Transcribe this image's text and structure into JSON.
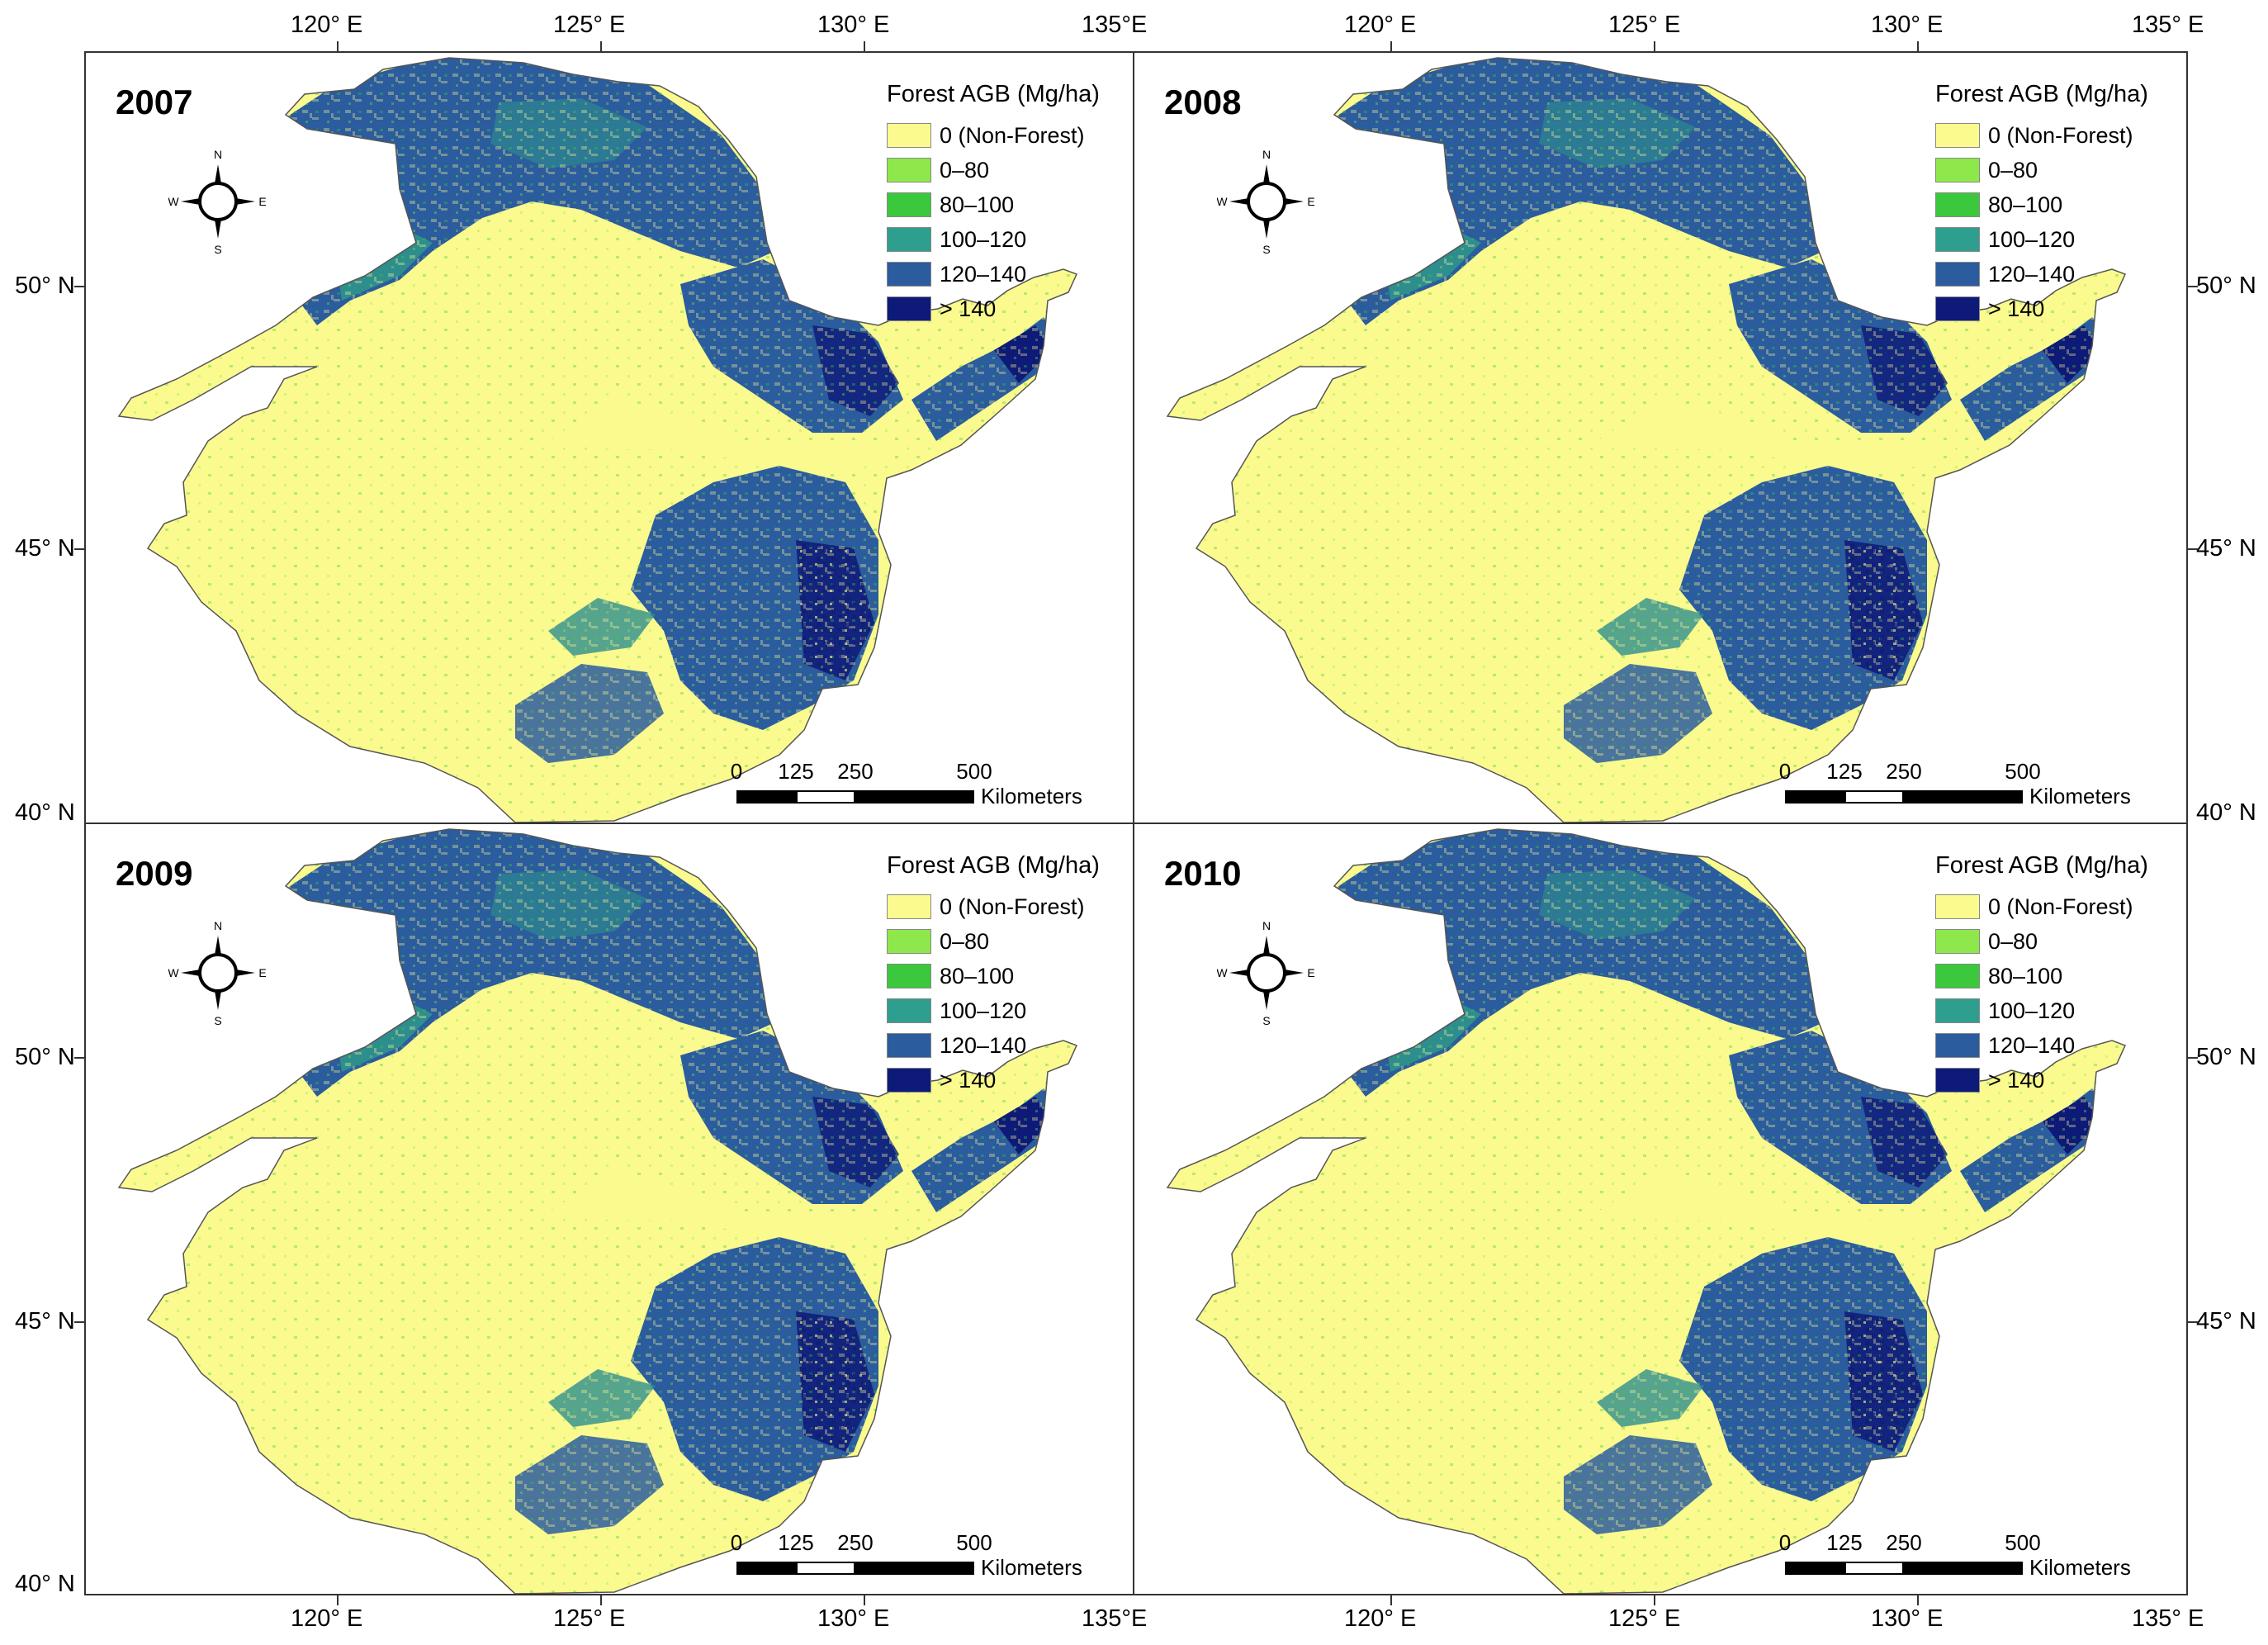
{
  "axes": {
    "top_lon_labels": [
      "120° E",
      "125° E",
      "130° E",
      "135°E",
      "120° E",
      "125° E",
      "130° E",
      "135° E"
    ],
    "bottom_lon_labels": [
      "120° E",
      "125° E",
      "130° E",
      "135°E",
      "120° E",
      "125° E",
      "130° E",
      "135° E"
    ],
    "left_lat_labels_top": [
      "50° N",
      "45° N",
      "40° N"
    ],
    "left_lat_labels_bottom": [
      "50° N",
      "45° N",
      "40° N"
    ],
    "right_lat_labels_top": [
      "50° N",
      "45° N",
      "40° N"
    ],
    "right_lat_labels_bottom": [
      "50° N",
      "45° N"
    ]
  },
  "legend": {
    "title": "Forest AGB (Mg/ha)",
    "items": [
      {
        "label": "0 (Non-Forest)",
        "color": "#fbfa8e"
      },
      {
        "label": "0–80",
        "color": "#8ee84c"
      },
      {
        "label": "80–100",
        "color": "#3cc83c"
      },
      {
        "label": "100–120",
        "color": "#2e9e8e"
      },
      {
        "label": "120–140",
        "color": "#2a5c9e"
      },
      {
        "label": "> 140",
        "color": "#0e1a78"
      }
    ]
  },
  "compass": {
    "n": "N",
    "s": "S",
    "e": "E",
    "w": "W"
  },
  "scale_bar": {
    "ticks": [
      "0",
      "125",
      "250",
      "500"
    ],
    "unit": "Kilometers"
  },
  "panels": [
    {
      "year": "2007"
    },
    {
      "year": "2008"
    },
    {
      "year": "2009"
    },
    {
      "year": "2010"
    }
  ],
  "colors": {
    "region_outline": "#555555",
    "nonforest": "#fbfa8e",
    "forest_dark": "#2a5c9e",
    "forest_teal": "#2e8e8e"
  }
}
